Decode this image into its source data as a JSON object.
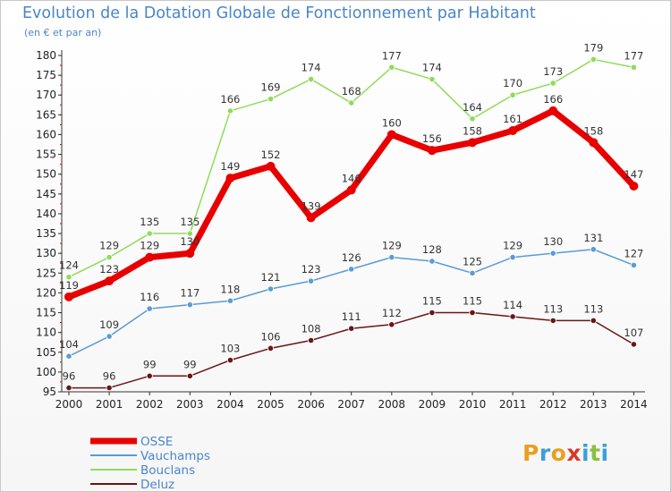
{
  "title": "Evolution de la Dotation Globale de Fonctionnement par Habitant",
  "subtitle": "(en € et par an)",
  "logo": {
    "text": "Proxiti",
    "colors": [
      "#e8a020",
      "#3aa0d8",
      "#e8a020",
      "#d83a2a",
      "#3aa0d8",
      "#88c040",
      "#3aa0d8"
    ]
  },
  "colors": {
    "OSSE": "#e80000",
    "Vauchamps": "#5b9bd5",
    "Bouclans": "#8fdc5a",
    "Deluz": "#6b1515"
  },
  "chart_data": {
    "type": "line",
    "title": "Evolution de la Dotation Globale de Fonctionnement par Habitant",
    "subtitle": "(en € et par an)",
    "x": [
      2000,
      2001,
      2002,
      2003,
      2004,
      2005,
      2006,
      2007,
      2008,
      2009,
      2010,
      2011,
      2012,
      2013,
      2014
    ],
    "ylim": [
      95,
      180
    ],
    "yticks": [
      95,
      100,
      105,
      110,
      115,
      120,
      125,
      130,
      135,
      140,
      145,
      150,
      155,
      160,
      165,
      170,
      175,
      180
    ],
    "grid": false,
    "legend": "bottom-left",
    "series": [
      {
        "name": "OSSE",
        "color": "#e80000",
        "values": [
          119,
          123,
          129,
          130,
          149,
          152,
          139,
          146,
          160,
          156,
          158,
          161,
          166,
          158,
          147
        ]
      },
      {
        "name": "Vauchamps",
        "color": "#5b9bd5",
        "values": [
          104,
          109,
          116,
          117,
          118,
          121,
          123,
          126,
          129,
          128,
          125,
          129,
          130,
          131,
          127
        ]
      },
      {
        "name": "Bouclans",
        "color": "#8fdc5a",
        "values": [
          124,
          129,
          135,
          135,
          166,
          169,
          174,
          168,
          177,
          174,
          164,
          170,
          173,
          179,
          177
        ]
      },
      {
        "name": "Deluz",
        "color": "#6b1515",
        "values": [
          96,
          96,
          99,
          99,
          103,
          106,
          108,
          111,
          112,
          115,
          115,
          114,
          113,
          113,
          107
        ]
      }
    ]
  }
}
